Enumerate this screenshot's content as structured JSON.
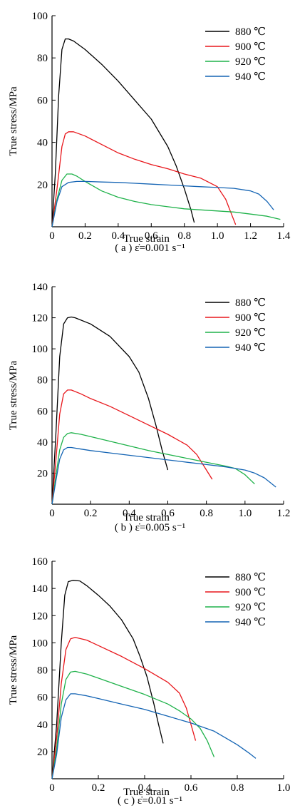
{
  "figure": {
    "legend_unit": "℃",
    "series_colors": {
      "880": "#000000",
      "900": "#e8161b",
      "920": "#1fb24a",
      "940": "#1464b4"
    }
  },
  "chart_data": [
    {
      "type": "line",
      "xlabel": "True strain",
      "ylabel": "True stress/MPa",
      "caption": "( a ) ε̇=0.001 s⁻¹",
      "xlim": [
        0,
        1.4
      ],
      "ylim": [
        0,
        100
      ],
      "xticks": [
        0,
        0.2,
        0.4,
        0.6,
        0.8,
        1.0,
        1.2,
        1.4
      ],
      "yticks": [
        20,
        40,
        60,
        80,
        100
      ],
      "xtick_labels": [
        "0",
        "0.2",
        "0.4",
        "0.6",
        "0.8",
        "1.0",
        "1.2",
        "1.4"
      ],
      "ytick_labels": [
        "20",
        "40",
        "60",
        "80",
        "100"
      ],
      "legend_position": "top-right",
      "series": [
        {
          "name": "880 ℃",
          "color": "#000000",
          "x": [
            0,
            0.02,
            0.04,
            0.06,
            0.08,
            0.1,
            0.13,
            0.2,
            0.3,
            0.4,
            0.5,
            0.6,
            0.7,
            0.75,
            0.8,
            0.84,
            0.86
          ],
          "y": [
            0,
            25,
            62,
            84,
            89,
            89,
            88,
            84,
            77,
            69,
            60,
            51,
            38,
            29,
            18,
            8,
            2
          ]
        },
        {
          "name": "900 ℃",
          "color": "#e8161b",
          "x": [
            0,
            0.03,
            0.06,
            0.08,
            0.1,
            0.13,
            0.2,
            0.3,
            0.4,
            0.5,
            0.6,
            0.7,
            0.8,
            0.9,
            1.0,
            1.05,
            1.08,
            1.11
          ],
          "y": [
            0,
            18,
            38,
            44,
            45,
            45,
            43,
            39,
            35,
            32,
            29.5,
            27.5,
            25,
            23,
            19,
            13,
            7,
            1
          ]
        },
        {
          "name": "920 ℃",
          "color": "#1fb24a",
          "x": [
            0,
            0.03,
            0.06,
            0.09,
            0.12,
            0.15,
            0.2,
            0.3,
            0.4,
            0.5,
            0.6,
            0.7,
            0.8,
            0.9,
            1.0,
            1.1,
            1.2,
            1.3,
            1.38
          ],
          "y": [
            0,
            13,
            22,
            25,
            25,
            24,
            21.5,
            17,
            14,
            12,
            10.5,
            9.5,
            8.5,
            8,
            7.5,
            7,
            6,
            5,
            3.5
          ]
        },
        {
          "name": "940 ℃",
          "color": "#1464b4",
          "x": [
            0,
            0.03,
            0.06,
            0.1,
            0.15,
            0.2,
            0.3,
            0.4,
            0.5,
            0.6,
            0.7,
            0.8,
            0.9,
            1.0,
            1.1,
            1.2,
            1.25,
            1.3,
            1.34
          ],
          "y": [
            0,
            12,
            19,
            21,
            21.5,
            21.5,
            21.2,
            21,
            20.6,
            20.2,
            19.8,
            19.4,
            19,
            18.6,
            18.2,
            17,
            15.5,
            12,
            8
          ]
        }
      ]
    },
    {
      "type": "line",
      "xlabel": "True strain",
      "ylabel": "True stress/MPa",
      "caption": "( b ) ε̇=0.005 s⁻¹",
      "xlim": [
        0,
        1.2
      ],
      "ylim": [
        0,
        140
      ],
      "xticks": [
        0,
        0.2,
        0.4,
        0.6,
        0.8,
        1.0,
        1.2
      ],
      "yticks": [
        20,
        40,
        60,
        80,
        100,
        120,
        140
      ],
      "xtick_labels": [
        "0",
        "0.2",
        "0.4",
        "0.6",
        "0.8",
        "1.0",
        "1.2"
      ],
      "ytick_labels": [
        "20",
        "40",
        "60",
        "80",
        "100",
        "120",
        "140"
      ],
      "legend_position": "top-right",
      "series": [
        {
          "name": "880 ℃",
          "color": "#000000",
          "x": [
            0,
            0.02,
            0.04,
            0.06,
            0.08,
            0.1,
            0.12,
            0.2,
            0.3,
            0.4,
            0.45,
            0.5,
            0.54,
            0.57,
            0.6
          ],
          "y": [
            0,
            45,
            95,
            116,
            120,
            120.5,
            120,
            116,
            108,
            95,
            85,
            68,
            50,
            35,
            22
          ]
        },
        {
          "name": "900 ℃",
          "color": "#e8161b",
          "x": [
            0,
            0.02,
            0.04,
            0.06,
            0.08,
            0.1,
            0.15,
            0.2,
            0.3,
            0.4,
            0.5,
            0.6,
            0.7,
            0.75,
            0.8,
            0.83
          ],
          "y": [
            0,
            28,
            58,
            71,
            73.5,
            73.5,
            71,
            68,
            63,
            57,
            51,
            45,
            38,
            32,
            22,
            16
          ]
        },
        {
          "name": "920 ℃",
          "color": "#1fb24a",
          "x": [
            0,
            0.02,
            0.04,
            0.06,
            0.08,
            0.1,
            0.15,
            0.2,
            0.3,
            0.4,
            0.5,
            0.6,
            0.7,
            0.8,
            0.9,
            0.95,
            1.0,
            1.05
          ],
          "y": [
            0,
            18,
            35,
            43,
            45.5,
            46,
            45,
            43.5,
            40.5,
            37.5,
            34.5,
            32,
            29.5,
            27,
            24.5,
            23,
            19,
            13
          ]
        },
        {
          "name": "940 ℃",
          "color": "#1464b4",
          "x": [
            0,
            0.02,
            0.04,
            0.06,
            0.08,
            0.1,
            0.15,
            0.2,
            0.3,
            0.4,
            0.5,
            0.6,
            0.7,
            0.8,
            0.9,
            1.0,
            1.05,
            1.1,
            1.16
          ],
          "y": [
            0,
            15,
            29,
            35,
            36.5,
            36.5,
            35.5,
            34.5,
            33,
            31.5,
            30,
            28.5,
            27,
            25.5,
            24,
            22,
            20,
            17,
            11
          ]
        }
      ]
    },
    {
      "type": "line",
      "xlabel": "True strain",
      "ylabel": "True stress/MPa",
      "caption": "( c ) ε̇=0.01 s⁻¹",
      "xlim": [
        0,
        1.0
      ],
      "ylim": [
        0,
        160
      ],
      "xticks": [
        0,
        0.2,
        0.4,
        0.6,
        0.8,
        1.0
      ],
      "yticks": [
        20,
        40,
        60,
        80,
        100,
        120,
        140,
        160
      ],
      "xtick_labels": [
        "0",
        "0.2",
        "0.4",
        "0.6",
        "0.8",
        "1.0"
      ],
      "ytick_labels": [
        "20",
        "40",
        "60",
        "80",
        "100",
        "120",
        "140",
        "160"
      ],
      "legend_position": "top-right",
      "series": [
        {
          "name": "880 ℃",
          "color": "#000000",
          "x": [
            0,
            0.02,
            0.04,
            0.055,
            0.07,
            0.09,
            0.12,
            0.15,
            0.2,
            0.25,
            0.3,
            0.35,
            0.38,
            0.41,
            0.44,
            0.46,
            0.48
          ],
          "y": [
            0,
            40,
            100,
            135,
            145,
            146,
            145.5,
            142,
            135,
            127,
            117,
            103,
            90,
            75,
            55,
            40,
            26
          ]
        },
        {
          "name": "900 ℃",
          "color": "#e8161b",
          "x": [
            0,
            0.02,
            0.04,
            0.06,
            0.08,
            0.1,
            0.15,
            0.2,
            0.3,
            0.4,
            0.5,
            0.55,
            0.58,
            0.6,
            0.62
          ],
          "y": [
            0,
            30,
            70,
            95,
            103,
            104,
            102,
            98,
            90,
            81,
            71,
            63,
            52,
            40,
            28
          ]
        },
        {
          "name": "920 ℃",
          "color": "#1fb24a",
          "x": [
            0,
            0.02,
            0.04,
            0.06,
            0.08,
            0.1,
            0.15,
            0.2,
            0.3,
            0.4,
            0.5,
            0.55,
            0.6,
            0.64,
            0.67,
            0.7
          ],
          "y": [
            0,
            22,
            55,
            73,
            78.5,
            79,
            77,
            74,
            68,
            62,
            55,
            50,
            44,
            37,
            28,
            16
          ]
        },
        {
          "name": "940 ℃",
          "color": "#1464b4",
          "x": [
            0,
            0.02,
            0.04,
            0.06,
            0.08,
            0.1,
            0.15,
            0.2,
            0.3,
            0.4,
            0.5,
            0.6,
            0.7,
            0.75,
            0.8,
            0.85,
            0.88
          ],
          "y": [
            0,
            18,
            45,
            58,
            62.5,
            62.5,
            61,
            59,
            55,
            51,
            46,
            41,
            35,
            30,
            25,
            19,
            15
          ]
        }
      ]
    }
  ]
}
